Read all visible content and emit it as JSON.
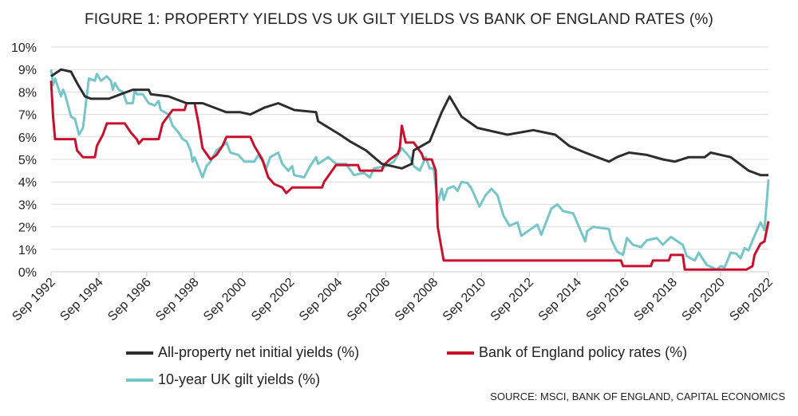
{
  "chart_data": {
    "type": "line",
    "title": "FIGURE 1: PROPERTY YIELDS VS UK GILT YIELDS VS BANK OF ENGLAND RATES (%)",
    "source": "SOURCE: MSCI, BANK OF ENGLAND, CAPITAL ECONOMICS",
    "xlabel": "",
    "ylabel": "",
    "xlim": [
      "1992-09",
      "2022-09"
    ],
    "ylim": [
      0,
      10
    ],
    "grid": "horizontal",
    "legend": "bottom",
    "x_ticks": [
      "Sep 1992",
      "Sep 1994",
      "Sep 1996",
      "Sep 1998",
      "Sep 2000",
      "Sep 2002",
      "Sep 2004",
      "Sep 2006",
      "Sep 2008",
      "Sep 2010",
      "Sep 2012",
      "Sep 2014",
      "Sep 2016",
      "Sep 2018",
      "Sep 2020",
      "Sep 2022"
    ],
    "y_ticks": [
      "0%",
      "1%",
      "2%",
      "3%",
      "4%",
      "5%",
      "6%",
      "7%",
      "8%",
      "9%",
      "10%"
    ],
    "series": [
      {
        "name": "All-property net initial yields (%)",
        "color": "#2d2d2d",
        "points": [
          [
            "1992-09",
            8.7
          ],
          [
            "1993-02",
            9.0
          ],
          [
            "1993-07",
            8.9
          ],
          [
            "1993-10",
            8.4
          ],
          [
            "1994-02",
            7.8
          ],
          [
            "1994-05",
            7.7
          ],
          [
            "1995-02",
            7.7
          ],
          [
            "1995-08",
            7.9
          ],
          [
            "1996-02",
            8.1
          ],
          [
            "1996-10",
            8.1
          ],
          [
            "1996-11",
            7.9
          ],
          [
            "1997-08",
            7.8
          ],
          [
            "1998-05",
            7.5
          ],
          [
            "1999-01",
            7.5
          ],
          [
            "1999-10",
            7.2
          ],
          [
            "2000-01",
            7.1
          ],
          [
            "2000-08",
            7.1
          ],
          [
            "2001-01",
            7.0
          ],
          [
            "2001-08",
            7.3
          ],
          [
            "2002-03",
            7.5
          ],
          [
            "2002-11",
            7.2
          ],
          [
            "2003-10",
            7.1
          ],
          [
            "2003-11",
            6.7
          ],
          [
            "2004-10",
            6.1
          ],
          [
            "2005-03",
            5.8
          ],
          [
            "2005-11",
            5.4
          ],
          [
            "2006-07",
            4.8
          ],
          [
            "2007-05",
            4.6
          ],
          [
            "2007-10",
            4.8
          ],
          [
            "2007-11",
            5.4
          ],
          [
            "2008-07",
            5.8
          ],
          [
            "2009-01",
            7.1
          ],
          [
            "2009-05",
            7.8
          ],
          [
            "2009-11",
            6.9
          ],
          [
            "2010-07",
            6.4
          ],
          [
            "2011-10",
            6.1
          ],
          [
            "2012-11",
            6.3
          ],
          [
            "2013-10",
            6.1
          ],
          [
            "2014-05",
            5.6
          ],
          [
            "2015-01",
            5.3
          ],
          [
            "2016-01",
            4.9
          ],
          [
            "2016-05",
            5.1
          ],
          [
            "2016-11",
            5.3
          ],
          [
            "2017-08",
            5.2
          ],
          [
            "2018-04",
            5.0
          ],
          [
            "2018-10",
            4.9
          ],
          [
            "2019-05",
            5.1
          ],
          [
            "2020-01",
            5.1
          ],
          [
            "2020-04",
            5.3
          ],
          [
            "2021-02",
            5.1
          ],
          [
            "2021-11",
            4.5
          ],
          [
            "2022-05",
            4.3
          ],
          [
            "2022-09",
            4.3
          ]
        ]
      },
      {
        "name": "Bank of England policy rates (%)",
        "color": "#c8102e",
        "points": [
          [
            "1992-09",
            8.5
          ],
          [
            "1992-10",
            6.9
          ],
          [
            "1992-11",
            5.9
          ],
          [
            "1993-09",
            5.9
          ],
          [
            "1993-10",
            5.4
          ],
          [
            "1994-01",
            5.1
          ],
          [
            "1994-07",
            5.1
          ],
          [
            "1994-08",
            5.6
          ],
          [
            "1994-11",
            6.1
          ],
          [
            "1995-01",
            6.6
          ],
          [
            "1995-10",
            6.6
          ],
          [
            "1996-01",
            6.2
          ],
          [
            "1996-04",
            5.9
          ],
          [
            "1996-05",
            5.7
          ],
          [
            "1996-07",
            5.9
          ],
          [
            "1997-03",
            5.9
          ],
          [
            "1997-05",
            6.6
          ],
          [
            "1997-10",
            7.2
          ],
          [
            "1998-04",
            7.2
          ],
          [
            "1998-05",
            7.5
          ],
          [
            "1998-09",
            7.5
          ],
          [
            "1998-11",
            6.6
          ],
          [
            "1999-01",
            5.5
          ],
          [
            "1999-05",
            5.0
          ],
          [
            "1999-08",
            5.2
          ],
          [
            "1999-11",
            5.6
          ],
          [
            "2000-01",
            6.0
          ],
          [
            "2001-01",
            6.0
          ],
          [
            "2001-03",
            5.6
          ],
          [
            "2001-07",
            5.0
          ],
          [
            "2001-10",
            4.2
          ],
          [
            "2002-01",
            3.9
          ],
          [
            "2002-05",
            3.75
          ],
          [
            "2002-07",
            3.5
          ],
          [
            "2002-10",
            3.75
          ],
          [
            "2004-01",
            3.75
          ],
          [
            "2004-02",
            4.0
          ],
          [
            "2004-04",
            4.25
          ],
          [
            "2004-08",
            4.75
          ],
          [
            "2005-07",
            4.75
          ],
          [
            "2005-08",
            4.5
          ],
          [
            "2006-07",
            4.5
          ],
          [
            "2006-08",
            4.75
          ],
          [
            "2006-11",
            5.0
          ],
          [
            "2007-03",
            5.25
          ],
          [
            "2007-04",
            5.5
          ],
          [
            "2007-05",
            6.5
          ],
          [
            "2007-07",
            5.75
          ],
          [
            "2007-11",
            5.75
          ],
          [
            "2008-01",
            5.5
          ],
          [
            "2008-03",
            5.25
          ],
          [
            "2008-04",
            5.0
          ],
          [
            "2008-08",
            5.0
          ],
          [
            "2008-10",
            4.5
          ],
          [
            "2008-11",
            2.0
          ],
          [
            "2009-02",
            0.5
          ],
          [
            "2016-07",
            0.5
          ],
          [
            "2016-08",
            0.25
          ],
          [
            "2017-10",
            0.25
          ],
          [
            "2017-11",
            0.5
          ],
          [
            "2018-07",
            0.5
          ],
          [
            "2018-08",
            0.75
          ],
          [
            "2019-02",
            0.75
          ],
          [
            "2019-03",
            0.1
          ],
          [
            "2021-10",
            0.1
          ],
          [
            "2022-01",
            0.25
          ],
          [
            "2022-02",
            0.75
          ],
          [
            "2022-05",
            1.25
          ],
          [
            "2022-07",
            1.35
          ],
          [
            "2022-09",
            2.25
          ]
        ]
      },
      {
        "name": "10-year UK gilt yields (%)",
        "color": "#76c6c9",
        "points": [
          [
            "1992-09",
            9.0
          ],
          [
            "1992-10",
            8.3
          ],
          [
            "1992-11",
            8.6
          ],
          [
            "1993-02",
            7.8
          ],
          [
            "1993-03",
            8.1
          ],
          [
            "1993-04",
            7.9
          ],
          [
            "1993-07",
            6.9
          ],
          [
            "1993-09",
            6.8
          ],
          [
            "1993-11",
            6.1
          ],
          [
            "1994-01",
            6.4
          ],
          [
            "1994-04",
            8.6
          ],
          [
            "1994-07",
            8.5
          ],
          [
            "1994-08",
            8.8
          ],
          [
            "1994-10",
            8.5
          ],
          [
            "1995-01",
            8.7
          ],
          [
            "1995-03",
            8.5
          ],
          [
            "1995-04",
            8.1
          ],
          [
            "1995-05",
            8.4
          ],
          [
            "1995-07",
            8.1
          ],
          [
            "1995-09",
            8.0
          ],
          [
            "1995-11",
            7.5
          ],
          [
            "1996-02",
            7.5
          ],
          [
            "1996-03",
            8.1
          ],
          [
            "1996-04",
            7.9
          ],
          [
            "1996-07",
            7.9
          ],
          [
            "1996-10",
            7.5
          ],
          [
            "1997-01",
            7.4
          ],
          [
            "1997-03",
            7.6
          ],
          [
            "1997-04",
            7.2
          ],
          [
            "1997-08",
            7.0
          ],
          [
            "1997-10",
            6.5
          ],
          [
            "1998-01",
            6.2
          ],
          [
            "1998-03",
            5.9
          ],
          [
            "1998-05",
            5.8
          ],
          [
            "1998-07",
            5.4
          ],
          [
            "1998-08",
            4.9
          ],
          [
            "1998-09",
            5.1
          ],
          [
            "1999-01",
            4.2
          ],
          [
            "1999-03",
            4.7
          ],
          [
            "1999-05",
            4.9
          ],
          [
            "1999-08",
            5.4
          ],
          [
            "1999-11",
            5.6
          ],
          [
            "2000-01",
            5.75
          ],
          [
            "2000-03",
            5.3
          ],
          [
            "2000-07",
            5.2
          ],
          [
            "2000-10",
            4.9
          ],
          [
            "2001-03",
            4.9
          ],
          [
            "2001-05",
            5.2
          ],
          [
            "2001-08",
            4.8
          ],
          [
            "2001-09",
            4.6
          ],
          [
            "2001-11",
            5.1
          ],
          [
            "2002-03",
            5.3
          ],
          [
            "2002-05",
            4.8
          ],
          [
            "2002-08",
            4.5
          ],
          [
            "2002-10",
            4.7
          ],
          [
            "2002-11",
            4.3
          ],
          [
            "2003-04",
            4.2
          ],
          [
            "2003-07",
            4.7
          ],
          [
            "2003-10",
            5.1
          ],
          [
            "2003-11",
            4.8
          ],
          [
            "2004-04",
            5.1
          ],
          [
            "2004-08",
            4.8
          ],
          [
            "2005-01",
            4.8
          ],
          [
            "2005-05",
            4.3
          ],
          [
            "2005-10",
            4.4
          ],
          [
            "2006-01",
            4.2
          ],
          [
            "2006-03",
            4.6
          ],
          [
            "2006-09",
            4.7
          ],
          [
            "2007-01",
            4.9
          ],
          [
            "2007-05",
            5.5
          ],
          [
            "2007-09",
            5.1
          ],
          [
            "2007-11",
            4.7
          ],
          [
            "2008-02",
            4.5
          ],
          [
            "2008-05",
            5.1
          ],
          [
            "2008-07",
            4.6
          ],
          [
            "2008-09",
            4.6
          ],
          [
            "2008-11",
            3.05
          ],
          [
            "2009-01",
            3.7
          ],
          [
            "2009-02",
            3.2
          ],
          [
            "2009-04",
            3.7
          ],
          [
            "2009-07",
            3.8
          ],
          [
            "2009-09",
            3.6
          ],
          [
            "2009-11",
            4.0
          ],
          [
            "2010-02",
            3.95
          ],
          [
            "2010-04",
            3.7
          ],
          [
            "2010-08",
            2.9
          ],
          [
            "2010-11",
            3.4
          ],
          [
            "2011-02",
            3.7
          ],
          [
            "2011-05",
            3.4
          ],
          [
            "2011-08",
            2.5
          ],
          [
            "2011-11",
            2.05
          ],
          [
            "2012-03",
            2.2
          ],
          [
            "2012-05",
            1.6
          ],
          [
            "2012-09",
            1.85
          ],
          [
            "2013-01",
            2.1
          ],
          [
            "2013-03",
            1.65
          ],
          [
            "2013-08",
            2.8
          ],
          [
            "2013-11",
            3.0
          ],
          [
            "2014-02",
            2.7
          ],
          [
            "2014-07",
            2.6
          ],
          [
            "2015-01",
            1.35
          ],
          [
            "2015-02",
            1.8
          ],
          [
            "2015-05",
            2.0
          ],
          [
            "2016-01",
            1.9
          ],
          [
            "2016-02",
            1.45
          ],
          [
            "2016-05",
            0.9
          ],
          [
            "2016-08",
            0.75
          ],
          [
            "2016-10",
            1.5
          ],
          [
            "2017-01",
            1.2
          ],
          [
            "2017-05",
            1.1
          ],
          [
            "2017-08",
            1.4
          ],
          [
            "2018-01",
            1.5
          ],
          [
            "2018-04",
            1.2
          ],
          [
            "2018-08",
            1.55
          ],
          [
            "2019-02",
            1.2
          ],
          [
            "2019-04",
            0.7
          ],
          [
            "2019-08",
            0.5
          ],
          [
            "2019-10",
            0.85
          ],
          [
            "2020-02",
            0.3
          ],
          [
            "2020-07",
            0.1
          ],
          [
            "2020-09",
            0.25
          ],
          [
            "2020-11",
            0.2
          ],
          [
            "2021-02",
            0.85
          ],
          [
            "2021-05",
            0.8
          ],
          [
            "2021-07",
            0.6
          ],
          [
            "2021-09",
            1.05
          ],
          [
            "2021-11",
            0.95
          ],
          [
            "2022-02",
            1.6
          ],
          [
            "2022-05",
            2.2
          ],
          [
            "2022-07",
            1.85
          ],
          [
            "2022-09",
            4.1
          ]
        ]
      }
    ]
  }
}
